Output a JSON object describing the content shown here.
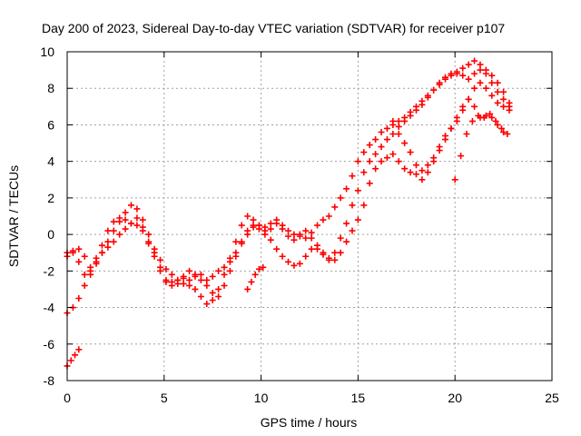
{
  "chart_data": {
    "type": "scatter",
    "title": "Day 200 of 2023, Sidereal Day-to-day VTEC variation (SDTVAR) for receiver p107",
    "xlabel": "GPS time / hours",
    "ylabel": "SDTVAR / TECUs",
    "xlim": [
      0,
      25
    ],
    "ylim": [
      -8,
      10
    ],
    "x_ticks": [
      0,
      5,
      10,
      15,
      20,
      25
    ],
    "y_ticks": [
      -8,
      -6,
      -4,
      -2,
      0,
      2,
      4,
      6,
      8,
      10
    ],
    "x_tick_labels": [
      "0",
      "5",
      "10",
      "15",
      "20",
      "25"
    ],
    "y_tick_labels": [
      "-8",
      "-6",
      "-4",
      "-2",
      "0",
      "2",
      "4",
      "6",
      "8",
      "10"
    ],
    "grid": true,
    "marker": "+",
    "marker_color": "#ff0000",
    "series": [
      {
        "x": [
          0.0,
          0.3,
          0.6,
          0.9,
          1.2,
          1.5,
          1.8,
          2.1,
          2.4,
          2.7,
          3.0,
          3.3,
          3.6,
          3.9,
          4.2,
          4.5,
          4.8,
          5.1,
          5.4,
          5.7,
          6.0,
          6.3,
          6.6,
          6.9,
          7.2,
          7.5,
          7.8,
          8.1,
          8.4,
          8.7,
          9.0,
          9.3,
          9.6,
          9.9,
          10.2,
          10.5,
          10.8,
          11.1,
          11.4,
          11.7,
          12.0,
          12.3,
          12.6,
          12.9,
          13.2,
          13.5,
          13.8,
          14.1,
          14.4,
          14.7,
          15.0,
          15.3,
          15.6,
          15.9,
          16.2,
          16.5,
          16.8,
          17.1,
          17.4,
          17.7,
          18.0,
          18.3,
          18.6,
          18.9,
          19.2,
          19.5,
          19.8,
          20.1,
          20.4,
          20.7,
          21.0,
          21.3,
          21.6,
          21.9,
          22.2,
          22.5,
          22.8
        ],
        "y": [
          -1.0,
          -0.9,
          -0.8,
          -1.2,
          -1.8,
          -1.5,
          -1.0,
          -0.7,
          -0.4,
          0.0,
          0.3,
          0.6,
          0.5,
          0.2,
          -0.5,
          -1.0,
          -1.8,
          -2.5,
          -2.6,
          -2.5,
          -2.3,
          -2.5,
          -2.3,
          -2.2,
          -2.5,
          -2.3,
          -2.0,
          -1.8,
          -1.5,
          -1.0,
          -0.5,
          0.0,
          0.4,
          0.5,
          0.4,
          0.6,
          0.8,
          0.5,
          0.2,
          0.0,
          0.0,
          -0.2,
          0.1,
          0.5,
          0.8,
          1.0,
          1.5,
          2.0,
          2.5,
          3.2,
          4.0,
          4.5,
          4.9,
          5.2,
          5.6,
          5.8,
          6.0,
          6.2,
          6.4,
          6.7,
          7.0,
          7.3,
          7.6,
          7.9,
          8.3,
          8.6,
          8.8,
          8.8,
          8.7,
          8.5,
          8.8,
          9.0,
          8.8,
          8.3,
          7.8,
          7.4,
          7.0
        ]
      },
      {
        "x": [
          0.0,
          0.3,
          0.6,
          0.9,
          1.2,
          1.5,
          1.8,
          2.1,
          2.4,
          2.7,
          3.0,
          3.3,
          3.6,
          3.9,
          4.2,
          4.5,
          4.8,
          5.1,
          5.4,
          5.7,
          6.0,
          6.3,
          6.6,
          6.9,
          7.2,
          7.5,
          7.8,
          8.1,
          8.4,
          8.7,
          9.0,
          9.3,
          9.6,
          9.9,
          10.2,
          10.5,
          10.8,
          11.1,
          11.4,
          11.7,
          12.0,
          12.3,
          12.6,
          12.9,
          13.2,
          13.5,
          13.8,
          14.1,
          14.4,
          14.7,
          15.0,
          15.3,
          15.6,
          15.9,
          16.2,
          16.5,
          16.8,
          17.1,
          17.4,
          17.7,
          18.0,
          18.3,
          18.6,
          18.9,
          19.2,
          19.5,
          19.8,
          20.1,
          20.4,
          20.7,
          21.0,
          21.3,
          21.6,
          21.9,
          22.2,
          22.5,
          22.8
        ],
        "y": [
          -4.3,
          -4.0,
          -3.5,
          -2.8,
          -2.2,
          -1.6,
          -1.0,
          -0.4,
          0.2,
          0.7,
          1.2,
          1.6,
          1.4,
          0.8,
          0.0,
          -0.8,
          -1.4,
          -1.9,
          -2.2,
          -2.5,
          -2.7,
          -2.8,
          -3.0,
          -3.4,
          -3.8,
          -3.6,
          -3.0,
          -2.2,
          -1.3,
          -0.4,
          0.5,
          1.0,
          0.8,
          0.5,
          0.2,
          -0.3,
          -0.8,
          -1.2,
          -1.5,
          -1.7,
          -1.6,
          -1.2,
          -0.8,
          -0.8,
          -1.1,
          -1.3,
          -1.0,
          -0.2,
          0.6,
          1.6,
          2.4,
          3.4,
          4.0,
          4.4,
          4.8,
          5.2,
          5.5,
          5.9,
          6.2,
          6.5,
          6.8,
          7.1,
          7.5,
          7.9,
          8.2,
          8.5,
          8.7,
          8.9,
          9.1,
          9.3,
          9.5,
          9.3,
          9.0,
          8.7,
          8.3,
          7.8,
          7.2
        ]
      },
      {
        "x": [
          0.0,
          0.3,
          0.6,
          0.9,
          1.2,
          1.5,
          1.8,
          2.1,
          2.4,
          2.7,
          3.0,
          3.3,
          3.6,
          3.9,
          4.2,
          4.5,
          4.8,
          5.1,
          5.4,
          5.7,
          6.0,
          6.3,
          6.6,
          6.9,
          7.2,
          7.5,
          7.8,
          8.1,
          8.4,
          8.7,
          9.0,
          9.3,
          9.6,
          9.9,
          10.2,
          10.5,
          10.8,
          11.1,
          11.4,
          11.7,
          12.0,
          12.3,
          12.6,
          12.9,
          13.2,
          13.5,
          13.8,
          14.1,
          14.4,
          14.7,
          15.0,
          15.3,
          15.6,
          15.9,
          16.2,
          16.5,
          16.8,
          17.1,
          17.4,
          17.7,
          18.0,
          18.3,
          18.6,
          18.9,
          19.2,
          19.5,
          19.8,
          20.1,
          20.4,
          20.7,
          21.0,
          21.3,
          21.6,
          21.9,
          22.2,
          22.5,
          22.8
        ],
        "y": [
          -1.2,
          -1.0,
          -1.5,
          -2.2,
          -2.0,
          -1.3,
          -0.6,
          0.2,
          0.7,
          0.9,
          0.8,
          0.6,
          0.9,
          0.4,
          -0.4,
          -1.2,
          -2.0,
          -2.6,
          -2.8,
          -2.7,
          -2.4,
          -2.0,
          -2.2,
          -2.5,
          -2.8,
          -3.2,
          -3.4,
          -2.8,
          -2.0,
          -1.2,
          -0.4,
          0.2,
          0.5,
          0.3,
          0.0,
          0.3,
          0.6,
          0.3,
          -0.1,
          -0.3,
          -0.1,
          0.2,
          -0.2,
          -0.6,
          -1.0,
          -1.4,
          -1.4,
          -1.0,
          -0.4,
          0.2,
          0.8,
          1.6,
          2.8,
          3.6,
          4.0,
          4.2,
          4.4,
          4.0,
          3.6,
          3.4,
          3.3,
          3.5,
          3.8,
          4.2,
          4.8,
          5.4,
          5.8,
          6.2,
          6.8,
          7.4,
          8.0,
          8.3,
          8.0,
          7.6,
          7.2,
          7.0,
          6.8
        ]
      },
      {
        "x": [
          0.0,
          0.2,
          0.4,
          0.6,
          9.3,
          9.5,
          9.7,
          9.9,
          10.1,
          16.8,
          17.1,
          17.4,
          17.7,
          18.0,
          18.3,
          18.6,
          18.9,
          19.2,
          19.5,
          19.8,
          20.1,
          20.4,
          20.7,
          21.0,
          21.3,
          21.6,
          21.9,
          22.2,
          22.5
        ],
        "y": [
          -7.2,
          -6.9,
          -6.6,
          -6.3,
          -3.0,
          -2.6,
          -2.2,
          -1.9,
          -1.8,
          6.2,
          5.5,
          5.0,
          4.5,
          3.8,
          3.0,
          3.4,
          4.0,
          4.6,
          5.2,
          5.8,
          6.4,
          7.0,
          7.4,
          7.0,
          6.4,
          6.5,
          6.4,
          6.0,
          5.6
        ]
      },
      {
        "x": [
          20.0,
          20.3,
          20.6,
          20.9,
          21.2,
          21.5,
          21.8,
          22.1,
          22.4,
          22.7
        ],
        "y": [
          3.0,
          4.3,
          5.5,
          6.2,
          6.5,
          6.4,
          6.6,
          6.2,
          5.8,
          5.5
        ]
      }
    ]
  }
}
